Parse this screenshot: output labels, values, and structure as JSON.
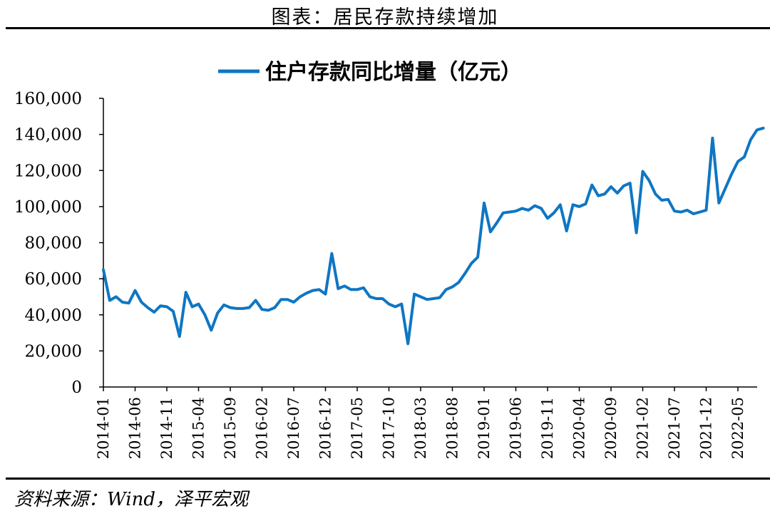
{
  "header": {
    "title": "图表：居民存款持续增加"
  },
  "footer": {
    "source": "资料来源：Wind，泽平宏观"
  },
  "colors": {
    "series": "#0f76c3",
    "axis": "#000000"
  },
  "chart_data": {
    "type": "line",
    "title": "",
    "xlabel": "",
    "ylabel": "",
    "ylim": [
      0,
      160000
    ],
    "y_ticks": [
      0,
      20000,
      40000,
      60000,
      80000,
      100000,
      120000,
      140000,
      160000
    ],
    "y_tick_labels": [
      "0",
      "20,000",
      "40,000",
      "60,000",
      "80,000",
      "100,000",
      "120,000",
      "140,000",
      "160,000"
    ],
    "x_tick_labels": [
      "2014-01",
      "2014-06",
      "2014-11",
      "2015-04",
      "2015-09",
      "2016-02",
      "2016-07",
      "2016-12",
      "2017-05",
      "2017-10",
      "2018-03",
      "2018-08",
      "2019-01",
      "2019-06",
      "2019-11",
      "2020-04",
      "2020-09",
      "2021-02",
      "2021-07",
      "2021-12",
      "2022-05"
    ],
    "legend_position": "top-center",
    "grid": false,
    "series": [
      {
        "name": "住户存款同比增量（亿元）",
        "x": [
          "2014-01",
          "2014-02",
          "2014-03",
          "2014-04",
          "2014-05",
          "2014-06",
          "2014-07",
          "2014-08",
          "2014-09",
          "2014-10",
          "2014-11",
          "2014-12",
          "2015-01",
          "2015-02",
          "2015-03",
          "2015-04",
          "2015-05",
          "2015-06",
          "2015-07",
          "2015-08",
          "2015-09",
          "2015-10",
          "2015-11",
          "2015-12",
          "2016-01",
          "2016-02",
          "2016-03",
          "2016-04",
          "2016-05",
          "2016-06",
          "2016-07",
          "2016-08",
          "2016-09",
          "2016-10",
          "2016-11",
          "2016-12",
          "2017-01",
          "2017-02",
          "2017-03",
          "2017-04",
          "2017-05",
          "2017-06",
          "2017-07",
          "2017-08",
          "2017-09",
          "2017-10",
          "2017-11",
          "2017-12",
          "2018-01",
          "2018-02",
          "2018-03",
          "2018-04",
          "2018-05",
          "2018-06",
          "2018-07",
          "2018-08",
          "2018-09",
          "2018-10",
          "2018-11",
          "2018-12",
          "2019-01",
          "2019-02",
          "2019-03",
          "2019-04",
          "2019-05",
          "2019-06",
          "2019-07",
          "2019-08",
          "2019-09",
          "2019-10",
          "2019-11",
          "2019-12",
          "2020-01",
          "2020-02",
          "2020-03",
          "2020-04",
          "2020-05",
          "2020-06",
          "2020-07",
          "2020-08",
          "2020-09",
          "2020-10",
          "2020-11",
          "2020-12",
          "2021-01",
          "2021-02",
          "2021-03",
          "2021-04",
          "2021-05",
          "2021-06",
          "2021-07",
          "2021-08",
          "2021-09",
          "2021-10",
          "2021-11",
          "2021-12",
          "2022-01",
          "2022-02",
          "2022-03",
          "2022-04",
          "2022-05",
          "2022-06",
          "2022-07",
          "2022-08",
          "2022-09"
        ],
        "values": [
          65000,
          48000,
          50000,
          47000,
          46500,
          53500,
          47000,
          44000,
          41500,
          45000,
          44500,
          42000,
          28000,
          52500,
          44500,
          46000,
          40000,
          31500,
          41000,
          45500,
          44000,
          43500,
          43500,
          44000,
          48000,
          43000,
          42500,
          44000,
          48500,
          48500,
          47000,
          50000,
          52000,
          53500,
          54000,
          51500,
          74000,
          54500,
          56000,
          54000,
          54000,
          55000,
          50000,
          49000,
          49000,
          46000,
          44500,
          46000,
          24000,
          51500,
          50000,
          48500,
          49000,
          49500,
          54000,
          55500,
          58000,
          63000,
          68500,
          72000,
          102000,
          86000,
          91000,
          96500,
          97000,
          97500,
          99000,
          98000,
          100500,
          99000,
          93500,
          96500,
          101000,
          86500,
          101000,
          100000,
          101500,
          112000,
          106000,
          107000,
          111000,
          107500,
          111500,
          113000,
          85500,
          119500,
          114500,
          107000,
          103500,
          104000,
          97500,
          97000,
          98000,
          96000,
          97000,
          98000,
          138000,
          102000,
          110000,
          118000,
          125000,
          127500,
          137000,
          142500,
          143500
        ]
      }
    ]
  }
}
